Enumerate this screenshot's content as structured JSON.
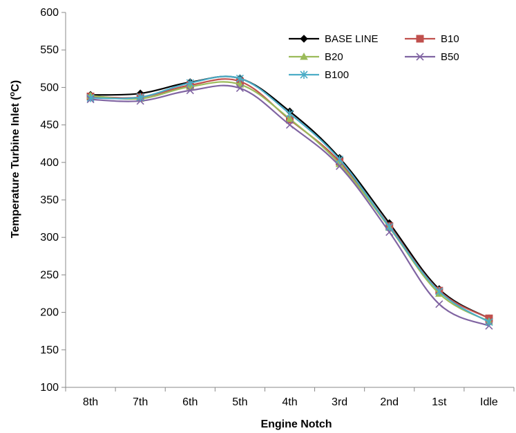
{
  "chart_data": {
    "type": "line",
    "title": "",
    "xlabel": "Engine Notch",
    "ylabel": "Temperature Turbine Inlet (",
    "ylabel_sup": "o",
    "ylabel_suffix": "C)",
    "categories": [
      "8th",
      "7th",
      "6th",
      "5th",
      "4th",
      "3rd",
      "2nd",
      "1st",
      "Idle"
    ],
    "ylim": [
      100,
      600
    ],
    "yticks": [
      100,
      150,
      200,
      250,
      300,
      350,
      400,
      450,
      500,
      550,
      600
    ],
    "grid": false,
    "legend_position": "top-right",
    "series": [
      {
        "name": "BASE LINE",
        "color": "#000000",
        "marker": "diamond",
        "values": [
          490,
          492,
          507,
          512,
          468,
          406,
          319,
          231,
          192
        ]
      },
      {
        "name": "B10",
        "color": "#c0504d",
        "marker": "square",
        "values": [
          488,
          487,
          503,
          508,
          457,
          401,
          315,
          229,
          192
        ]
      },
      {
        "name": "B20",
        "color": "#9bbb59",
        "marker": "triangle",
        "values": [
          489,
          485,
          501,
          504,
          458,
          398,
          313,
          225,
          188
        ]
      },
      {
        "name": "B50",
        "color": "#8064a2",
        "marker": "x",
        "values": [
          484,
          482,
          496,
          499,
          450,
          395,
          307,
          211,
          182
        ]
      },
      {
        "name": "B100",
        "color": "#4bacc6",
        "marker": "asterisk",
        "values": [
          486,
          487,
          506,
          512,
          465,
          404,
          314,
          228,
          187
        ]
      }
    ]
  }
}
